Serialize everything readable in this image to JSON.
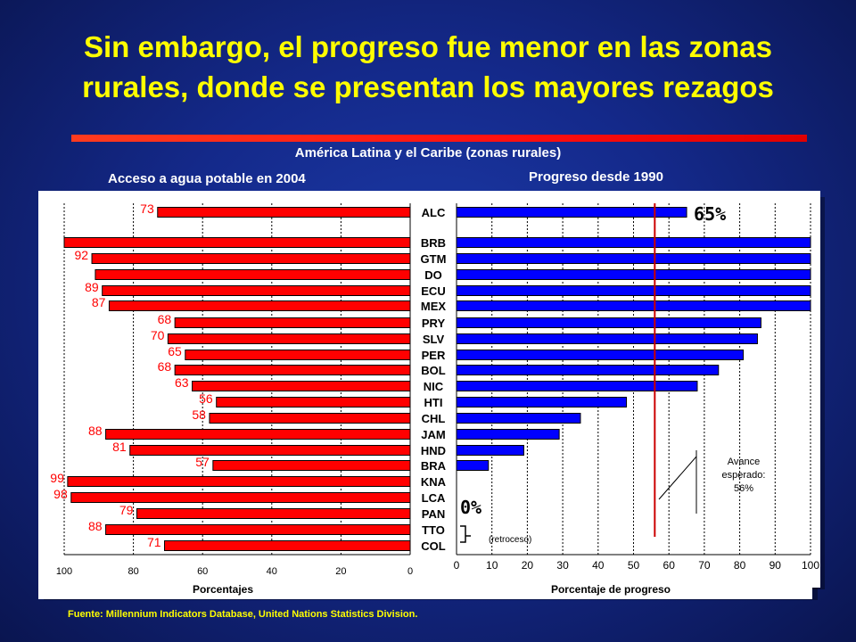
{
  "slide": {
    "title_line1": "Sin embargo, el progreso fue menor en las zonas",
    "title_line2": "rurales, donde se presentan los mayores rezagos",
    "region_title": "América Latina y el Caribe (zonas rurales)",
    "source": "Fuente: Millennium Indicators Database, United Nations Statistics Division.",
    "colors": {
      "title": "#ffff00",
      "left_bars": "#ff0000",
      "right_bars": "#0000ff",
      "background": "#14298a",
      "target_line": "#cc0000"
    }
  },
  "chart_data": [
    {
      "type": "bar",
      "title": "Acceso a agua potable en 2004",
      "xlabel": "Porcentajes",
      "orientation": "horizontal",
      "x_reversed": true,
      "xlim": [
        0,
        100
      ],
      "ticks": [
        "100",
        "80",
        "60",
        "40",
        "20",
        "0"
      ],
      "grid": true,
      "categories": [
        "ALC",
        "BRB",
        "GTM",
        "DO",
        "ECU",
        "MEX",
        "PRY",
        "SLV",
        "PER",
        "BOL",
        "NIC",
        "HTI",
        "CHL",
        "JAM",
        "HND",
        "BRA",
        "KNA",
        "LCA",
        "PAN",
        "TTO",
        "COL"
      ],
      "values": [
        73,
        100,
        92,
        91,
        89,
        87,
        68,
        70,
        65,
        68,
        63,
        56,
        58,
        88,
        81,
        57,
        99,
        98,
        79,
        88,
        71
      ],
      "value_labels": [
        "73",
        "",
        "92",
        "",
        "89",
        "87",
        "68",
        "70",
        "65",
        "68",
        "63",
        "56",
        "58",
        "88",
        "81",
        "57",
        "99",
        "98",
        "79",
        "88",
        "71"
      ]
    },
    {
      "type": "bar",
      "title": "Progreso desde 1990",
      "xlabel": "Porcentaje de progreso",
      "orientation": "horizontal",
      "xlim": [
        0,
        100
      ],
      "ticks": [
        "0",
        "10",
        "20",
        "30",
        "40",
        "50",
        "60",
        "70",
        "80",
        "90",
        "100"
      ],
      "grid": true,
      "categories": [
        "ALC",
        "BRB",
        "GTM",
        "DO",
        "ECU",
        "MEX",
        "PRY",
        "SLV",
        "PER",
        "BOL",
        "NIC",
        "HTI",
        "CHL",
        "JAM",
        "HND",
        "BRA",
        "KNA",
        "LCA",
        "PAN",
        "TTO",
        "COL"
      ],
      "values": [
        65,
        100,
        100,
        100,
        100,
        100,
        86,
        85,
        81,
        74,
        68,
        48,
        35,
        29,
        19,
        9,
        0,
        0,
        0,
        0,
        0
      ],
      "annotations": {
        "alc_value": "65%",
        "zero_value": "0%",
        "col_note": "(retroceso)",
        "target": "Avance esperado: 56%",
        "target_value": 56
      }
    }
  ]
}
